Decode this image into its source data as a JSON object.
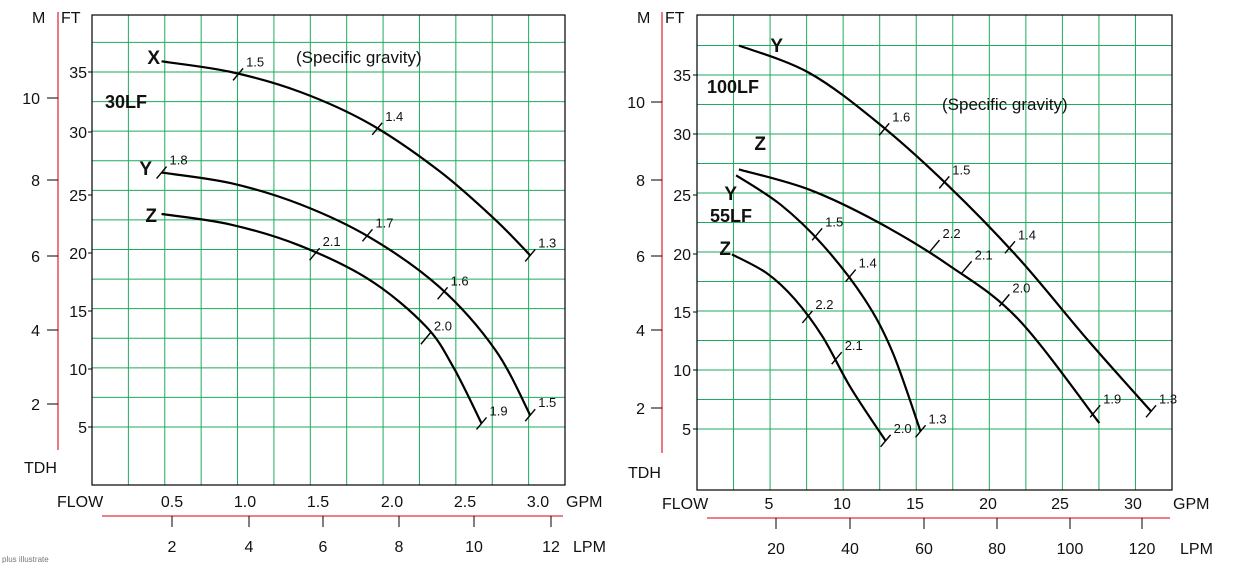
{
  "footnote": "plus illustrate",
  "chart_data": [
    {
      "type": "line",
      "model_labels": [
        "30LF"
      ],
      "axis_titles": {
        "tdh": "TDH",
        "flow": "FLOW",
        "ft": "FT",
        "m": "M",
        "gpm": "GPM",
        "lpm": "LPM"
      },
      "gpm_range": [
        0.0,
        3.4
      ],
      "gpm_ticks": [
        "0.5",
        "1.0",
        "1.5",
        "2.0",
        "2.5",
        "3.0"
      ],
      "lpm_ticks": [
        "2",
        "4",
        "6",
        "8",
        "10",
        "12"
      ],
      "ft_range": [
        0,
        41
      ],
      "ft_ticks": [
        "5",
        "10",
        "15",
        "20",
        "25",
        "30",
        "35"
      ],
      "m_ticks": [
        "2",
        "4",
        "6",
        "8",
        "10"
      ],
      "annotation": "(Specific gravity)",
      "series": [
        {
          "name": "X",
          "points": [
            [
              0.5,
              35.9
            ],
            [
              1.0,
              35.0
            ],
            [
              1.5,
              33.3
            ],
            [
              2.0,
              30.6
            ],
            [
              2.5,
              26.6
            ],
            [
              2.9,
              22.5
            ],
            [
              3.15,
              19.5
            ]
          ],
          "sg_marks": [
            {
              "label": "1.5",
              "x": 1.05,
              "y": 34.8
            },
            {
              "label": "1.4",
              "x": 2.05,
              "y": 30.2
            },
            {
              "label": "1.3",
              "x": 3.15,
              "y": 19.5
            }
          ]
        },
        {
          "name": "Y",
          "points": [
            [
              0.5,
              26.5
            ],
            [
              1.0,
              25.6
            ],
            [
              1.5,
              23.8
            ],
            [
              2.0,
              21.0
            ],
            [
              2.5,
              16.8
            ],
            [
              2.9,
              11.5
            ],
            [
              3.15,
              6.0
            ]
          ],
          "sg_marks": [
            {
              "label": "1.8",
              "x": 0.5,
              "y": 26.5
            },
            {
              "label": "1.7",
              "x": 1.98,
              "y": 21.2
            },
            {
              "label": "1.6",
              "x": 2.52,
              "y": 16.3
            },
            {
              "label": "1.5",
              "x": 3.15,
              "y": 6.0
            }
          ]
        },
        {
          "name": "Z",
          "points": [
            [
              0.5,
              23.0
            ],
            [
              1.0,
              22.1
            ],
            [
              1.5,
              20.3
            ],
            [
              2.0,
              17.4
            ],
            [
              2.4,
              13.5
            ],
            [
              2.6,
              10.0
            ],
            [
              2.8,
              5.3
            ]
          ],
          "sg_marks": [
            {
              "label": "2.1",
              "x": 1.6,
              "y": 19.6
            },
            {
              "label": "2.0",
              "x": 2.4,
              "y": 12.5
            },
            {
              "label": "1.9",
              "x": 2.8,
              "y": 5.3
            }
          ]
        }
      ]
    },
    {
      "type": "line",
      "model_labels": [
        "100LF",
        "55LF"
      ],
      "axis_titles": {
        "tdh": "TDH",
        "flow": "FLOW",
        "ft": "FT",
        "m": "M",
        "gpm": "GPM",
        "lpm": "LPM"
      },
      "gpm_range": [
        0,
        34
      ],
      "gpm_ticks": [
        "5",
        "10",
        "15",
        "20",
        "25",
        "30"
      ],
      "lpm_ticks": [
        "20",
        "40",
        "60",
        "80",
        "100",
        "120"
      ],
      "ft_range": [
        0,
        41
      ],
      "ft_ticks": [
        "5",
        "10",
        "15",
        "20",
        "25",
        "30",
        "35"
      ],
      "m_ticks": [
        "2",
        "4",
        "6",
        "8",
        "10"
      ],
      "annotation": "(Specific gravity)",
      "series": [
        {
          "name": "Y",
          "model": "100LF",
          "points": [
            [
              3,
              37.5
            ],
            [
              8,
              35.2
            ],
            [
              13,
              30.9
            ],
            [
              18,
              25.6
            ],
            [
              23,
              19.5
            ],
            [
              28,
              12.5
            ],
            [
              32.5,
              6.5
            ]
          ],
          "sg_marks": [
            {
              "label": "1.6",
              "x": 13.4,
              "y": 30.4
            },
            {
              "label": "1.5",
              "x": 17.7,
              "y": 25.9
            },
            {
              "label": "1.4",
              "x": 22.4,
              "y": 20.4
            },
            {
              "label": "1.3",
              "x": 32.5,
              "y": 6.5
            }
          ]
        },
        {
          "name": "Z",
          "model": "100LF",
          "points": [
            [
              3,
              27.0
            ],
            [
              8,
              25.3
            ],
            [
              13,
              22.5
            ],
            [
              18,
              18.9
            ],
            [
              23,
              14.3
            ],
            [
              28.8,
              5.5
            ]
          ],
          "sg_marks": [
            {
              "label": "2.2",
              "x": 17.0,
              "y": 20.5
            },
            {
              "label": "2.1",
              "x": 19.3,
              "y": 18.7
            },
            {
              "label": "2.0",
              "x": 22.0,
              "y": 15.9
            },
            {
              "label": "1.9",
              "x": 28.5,
              "y": 6.5
            }
          ]
        },
        {
          "name": "Y",
          "model": "55LF",
          "points": [
            [
              2.8,
              26.5
            ],
            [
              6,
              24.0
            ],
            [
              9,
              20.6
            ],
            [
              12,
              16.0
            ],
            [
              14,
              11.5
            ],
            [
              16,
              4.8
            ]
          ],
          "sg_marks": [
            {
              "label": "1.5",
              "x": 8.6,
              "y": 21.5
            },
            {
              "label": "1.4",
              "x": 11.0,
              "y": 18.0
            },
            {
              "label": "1.3",
              "x": 16.0,
              "y": 4.8
            }
          ]
        },
        {
          "name": "Z",
          "model": "55LF",
          "points": [
            [
              2.5,
              19.8
            ],
            [
              5,
              18.2
            ],
            [
              7,
              16.0
            ],
            [
              9,
              12.8
            ],
            [
              11,
              8.5
            ],
            [
              13.5,
              4.0
            ]
          ],
          "sg_marks": [
            {
              "label": "2.2",
              "x": 7.9,
              "y": 14.5
            },
            {
              "label": "2.1",
              "x": 10.0,
              "y": 11.0
            },
            {
              "label": "2.0",
              "x": 13.5,
              "y": 4.0
            }
          ]
        }
      ]
    }
  ]
}
